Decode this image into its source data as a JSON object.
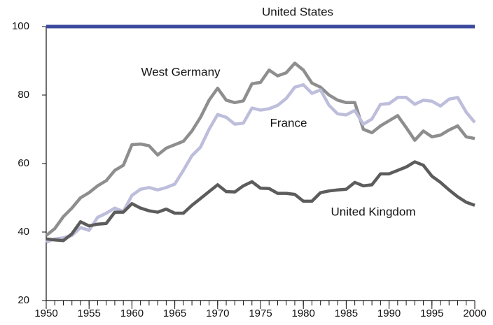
{
  "chart_data": {
    "type": "line",
    "x": [
      1950,
      1951,
      1952,
      1953,
      1954,
      1955,
      1956,
      1957,
      1958,
      1959,
      1960,
      1961,
      1962,
      1963,
      1964,
      1965,
      1966,
      1967,
      1968,
      1969,
      1970,
      1971,
      1972,
      1973,
      1974,
      1975,
      1976,
      1977,
      1978,
      1979,
      1980,
      1981,
      1982,
      1983,
      1984,
      1985,
      1986,
      1987,
      1988,
      1989,
      1990,
      1991,
      1992,
      1993,
      1994,
      1995,
      1996,
      1997,
      1998,
      1999,
      2000
    ],
    "series": [
      {
        "name": "United States",
        "color": "#3b4a9c",
        "values": [
          100,
          100,
          100,
          100,
          100,
          100,
          100,
          100,
          100,
          100,
          100,
          100,
          100,
          100,
          100,
          100,
          100,
          100,
          100,
          100,
          100,
          100,
          100,
          100,
          100,
          100,
          100,
          100,
          100,
          100,
          100,
          100,
          100,
          100,
          100,
          100,
          100,
          100,
          100,
          100,
          100,
          100,
          100,
          100,
          100,
          100,
          100,
          100,
          100,
          100,
          100
        ]
      },
      {
        "name": "West Germany",
        "color": "#8e8e8e",
        "values": [
          39,
          41,
          44.5,
          47,
          50,
          51.5,
          53.5,
          55,
          58,
          59.5,
          65.5,
          65.7,
          65.2,
          62.5,
          64.5,
          65.5,
          66.5,
          69.5,
          73.5,
          78.5,
          82,
          78.5,
          77.8,
          78.3,
          83.3,
          83.7,
          87.3,
          85.6,
          86.5,
          89.3,
          87.3,
          83.5,
          82.3,
          80,
          78.5,
          77.8,
          77.8,
          70,
          69,
          71,
          72.5,
          74,
          70.5,
          66.8,
          69.5,
          67.8,
          68.3,
          69.8,
          71,
          67.8,
          67.3
        ]
      },
      {
        "name": "France",
        "color": "#bdbddc",
        "values": [
          37,
          38,
          38.3,
          39,
          41.3,
          40.5,
          44.3,
          45.5,
          47,
          46,
          50.7,
          52.5,
          53,
          52.3,
          53,
          54,
          58,
          62.3,
          64.8,
          70,
          74.3,
          73.5,
          71.5,
          71.8,
          76.2,
          75.6,
          76,
          77,
          79,
          82.3,
          83,
          80.5,
          81.5,
          77,
          74.5,
          74.2,
          75.5,
          71.5,
          73,
          77.3,
          77.5,
          79.3,
          79.3,
          77.3,
          78.5,
          78.2,
          76.8,
          78.8,
          79.3,
          75,
          72
        ]
      },
      {
        "name": "United Kingdom",
        "color": "#5c5c5c",
        "values": [
          38,
          37.7,
          37.5,
          39.5,
          43,
          41.8,
          42.3,
          42.5,
          45.8,
          45.8,
          48.3,
          47,
          46.2,
          45.8,
          46.7,
          45.5,
          45.5,
          47.8,
          49.8,
          51.8,
          53.8,
          51.8,
          51.7,
          53.5,
          54.7,
          52.8,
          52.7,
          51.3,
          51.3,
          51,
          49,
          49,
          51.5,
          52,
          52.3,
          52.5,
          54.5,
          53.5,
          53.8,
          57,
          57,
          58,
          59,
          60.5,
          59.5,
          56.3,
          54.5,
          52.3,
          50.3,
          48.7,
          47.8
        ]
      }
    ],
    "xlim": [
      1950,
      2000
    ],
    "xticks": [
      1950,
      1955,
      1960,
      1965,
      1970,
      1975,
      1980,
      1985,
      1990,
      1995,
      2000
    ],
    "ylim": [
      20,
      100
    ],
    "yticks": [
      20,
      40,
      60,
      80,
      100
    ]
  }
}
